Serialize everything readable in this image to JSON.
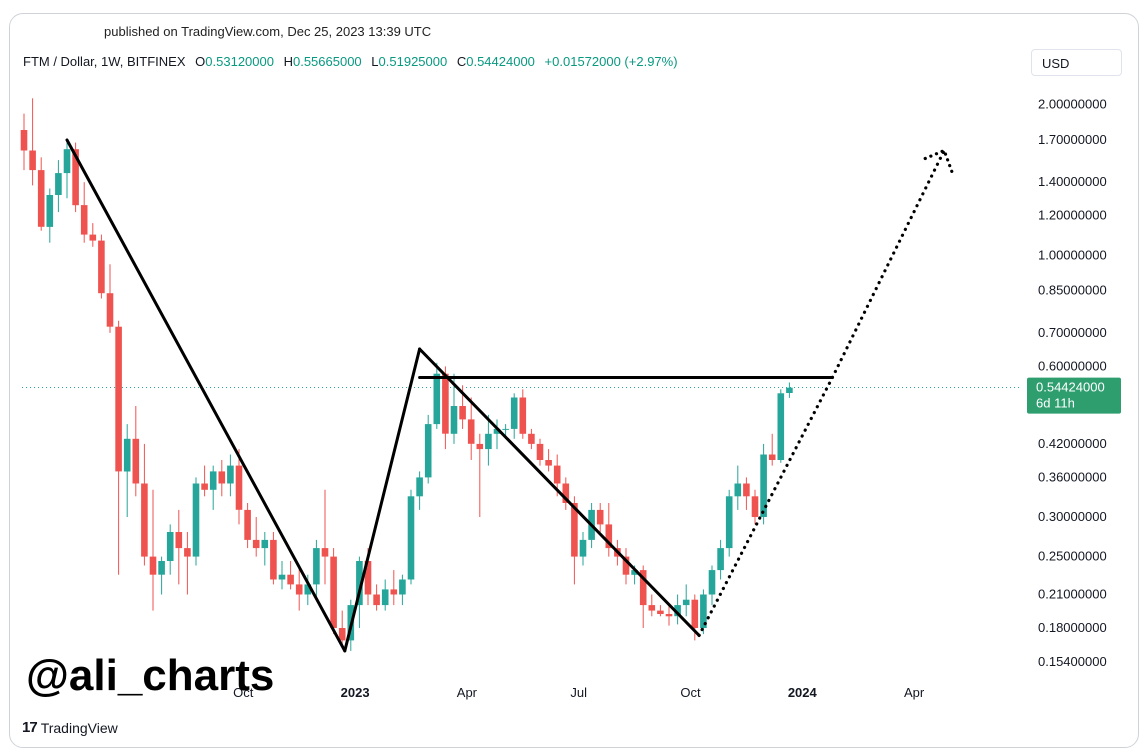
{
  "published": "published on TradingView.com, Dec 25, 2023 13:39 UTC",
  "header": {
    "symbol": "FTM / Dollar, 1W, BITFINEX",
    "o_label": "O",
    "o_value": "0.53120000",
    "h_label": "H",
    "h_value": "0.55665000",
    "l_label": "L",
    "l_value": "0.51925000",
    "c_label": "C",
    "c_value": "0.54424000",
    "change": "+0.01572000 (+2.97%)"
  },
  "currency": "USD",
  "watermark": "@ali_charts",
  "footer_logo": "TradingView",
  "colors": {
    "up": "#26a69a",
    "down": "#ef5350",
    "price_tag": "#2e9e6f",
    "lines": "#000000"
  },
  "chart_data": {
    "type": "candlestick",
    "interval": "1W",
    "scale": "log",
    "ylim": [
      0.145,
      2.2
    ],
    "y_ticks": [
      {
        "value": 2.0,
        "label": "2.00000000"
      },
      {
        "value": 1.7,
        "label": "1.70000000"
      },
      {
        "value": 1.4,
        "label": "1.40000000"
      },
      {
        "value": 1.2,
        "label": "1.20000000"
      },
      {
        "value": 1.0,
        "label": "1.00000000"
      },
      {
        "value": 0.85,
        "label": "0.85000000"
      },
      {
        "value": 0.7,
        "label": "0.70000000"
      },
      {
        "value": 0.6,
        "label": "0.60000000"
      },
      {
        "value": 0.42,
        "label": "0.42000000"
      },
      {
        "value": 0.36,
        "label": "0.36000000"
      },
      {
        "value": 0.3,
        "label": "0.30000000"
      },
      {
        "value": 0.25,
        "label": "0.25000000"
      },
      {
        "value": 0.21,
        "label": "0.21000000"
      },
      {
        "value": 0.18,
        "label": "0.18000000"
      },
      {
        "value": 0.154,
        "label": "0.15400000"
      }
    ],
    "x_ticks": [
      {
        "index": 25.5,
        "label": "Oct",
        "bold": false
      },
      {
        "index": 38.5,
        "label": "2023",
        "bold": true
      },
      {
        "index": 51.5,
        "label": "Apr",
        "bold": false
      },
      {
        "index": 64.5,
        "label": "Jul",
        "bold": false
      },
      {
        "index": 77.5,
        "label": "Oct",
        "bold": false
      },
      {
        "index": 90.5,
        "label": "2024",
        "bold": true
      },
      {
        "index": 103.5,
        "label": "Apr",
        "bold": false
      }
    ],
    "last_price": {
      "value": 0.54424,
      "label": "0.54424000",
      "countdown": "6d 11h"
    },
    "candles": [
      {
        "o": 1.78,
        "h": 1.92,
        "l": 1.48,
        "c": 1.62
      },
      {
        "o": 1.62,
        "h": 2.06,
        "l": 1.38,
        "c": 1.48
      },
      {
        "o": 1.48,
        "h": 1.57,
        "l": 1.12,
        "c": 1.14
      },
      {
        "o": 1.14,
        "h": 1.36,
        "l": 1.06,
        "c": 1.32
      },
      {
        "o": 1.32,
        "h": 1.55,
        "l": 1.22,
        "c": 1.46
      },
      {
        "o": 1.46,
        "h": 1.7,
        "l": 1.3,
        "c": 1.63
      },
      {
        "o": 1.63,
        "h": 1.68,
        "l": 1.22,
        "c": 1.26
      },
      {
        "o": 1.26,
        "h": 1.4,
        "l": 1.06,
        "c": 1.1
      },
      {
        "o": 1.1,
        "h": 1.16,
        "l": 1.04,
        "c": 1.07
      },
      {
        "o": 1.07,
        "h": 1.1,
        "l": 0.82,
        "c": 0.84
      },
      {
        "o": 0.84,
        "h": 0.96,
        "l": 0.7,
        "c": 0.72
      },
      {
        "o": 0.72,
        "h": 0.74,
        "l": 0.23,
        "c": 0.37
      },
      {
        "o": 0.37,
        "h": 0.46,
        "l": 0.3,
        "c": 0.43
      },
      {
        "o": 0.43,
        "h": 0.5,
        "l": 0.33,
        "c": 0.35
      },
      {
        "o": 0.35,
        "h": 0.42,
        "l": 0.24,
        "c": 0.25
      },
      {
        "o": 0.25,
        "h": 0.34,
        "l": 0.195,
        "c": 0.23
      },
      {
        "o": 0.23,
        "h": 0.25,
        "l": 0.21,
        "c": 0.245
      },
      {
        "o": 0.245,
        "h": 0.29,
        "l": 0.23,
        "c": 0.28
      },
      {
        "o": 0.28,
        "h": 0.31,
        "l": 0.22,
        "c": 0.26
      },
      {
        "o": 0.26,
        "h": 0.28,
        "l": 0.21,
        "c": 0.25
      },
      {
        "o": 0.25,
        "h": 0.36,
        "l": 0.24,
        "c": 0.35
      },
      {
        "o": 0.35,
        "h": 0.38,
        "l": 0.33,
        "c": 0.34
      },
      {
        "o": 0.34,
        "h": 0.38,
        "l": 0.31,
        "c": 0.37
      },
      {
        "o": 0.37,
        "h": 0.39,
        "l": 0.33,
        "c": 0.35
      },
      {
        "o": 0.35,
        "h": 0.4,
        "l": 0.33,
        "c": 0.38
      },
      {
        "o": 0.38,
        "h": 0.41,
        "l": 0.29,
        "c": 0.31
      },
      {
        "o": 0.31,
        "h": 0.32,
        "l": 0.26,
        "c": 0.27
      },
      {
        "o": 0.27,
        "h": 0.3,
        "l": 0.25,
        "c": 0.26
      },
      {
        "o": 0.26,
        "h": 0.28,
        "l": 0.24,
        "c": 0.27
      },
      {
        "o": 0.27,
        "h": 0.28,
        "l": 0.22,
        "c": 0.225
      },
      {
        "o": 0.225,
        "h": 0.245,
        "l": 0.215,
        "c": 0.23
      },
      {
        "o": 0.23,
        "h": 0.245,
        "l": 0.215,
        "c": 0.22
      },
      {
        "o": 0.22,
        "h": 0.24,
        "l": 0.195,
        "c": 0.21
      },
      {
        "o": 0.21,
        "h": 0.23,
        "l": 0.2,
        "c": 0.22
      },
      {
        "o": 0.22,
        "h": 0.27,
        "l": 0.205,
        "c": 0.26
      },
      {
        "o": 0.26,
        "h": 0.34,
        "l": 0.22,
        "c": 0.25
      },
      {
        "o": 0.25,
        "h": 0.26,
        "l": 0.175,
        "c": 0.18
      },
      {
        "o": 0.18,
        "h": 0.195,
        "l": 0.165,
        "c": 0.17
      },
      {
        "o": 0.17,
        "h": 0.205,
        "l": 0.162,
        "c": 0.2
      },
      {
        "o": 0.2,
        "h": 0.25,
        "l": 0.18,
        "c": 0.245
      },
      {
        "o": 0.245,
        "h": 0.26,
        "l": 0.2,
        "c": 0.21
      },
      {
        "o": 0.21,
        "h": 0.22,
        "l": 0.195,
        "c": 0.2
      },
      {
        "o": 0.2,
        "h": 0.225,
        "l": 0.195,
        "c": 0.215
      },
      {
        "o": 0.215,
        "h": 0.235,
        "l": 0.2,
        "c": 0.21
      },
      {
        "o": 0.21,
        "h": 0.23,
        "l": 0.2,
        "c": 0.225
      },
      {
        "o": 0.225,
        "h": 0.34,
        "l": 0.22,
        "c": 0.33
      },
      {
        "o": 0.33,
        "h": 0.37,
        "l": 0.31,
        "c": 0.36
      },
      {
        "o": 0.36,
        "h": 0.48,
        "l": 0.35,
        "c": 0.46
      },
      {
        "o": 0.46,
        "h": 0.61,
        "l": 0.45,
        "c": 0.58
      },
      {
        "o": 0.58,
        "h": 0.6,
        "l": 0.41,
        "c": 0.44
      },
      {
        "o": 0.44,
        "h": 0.58,
        "l": 0.42,
        "c": 0.5
      },
      {
        "o": 0.5,
        "h": 0.55,
        "l": 0.45,
        "c": 0.47
      },
      {
        "o": 0.47,
        "h": 0.52,
        "l": 0.39,
        "c": 0.42
      },
      {
        "o": 0.42,
        "h": 0.44,
        "l": 0.3,
        "c": 0.41
      },
      {
        "o": 0.41,
        "h": 0.48,
        "l": 0.38,
        "c": 0.44
      },
      {
        "o": 0.44,
        "h": 0.47,
        "l": 0.41,
        "c": 0.45
      },
      {
        "o": 0.45,
        "h": 0.46,
        "l": 0.43,
        "c": 0.45
      },
      {
        "o": 0.45,
        "h": 0.53,
        "l": 0.43,
        "c": 0.52
      },
      {
        "o": 0.52,
        "h": 0.54,
        "l": 0.43,
        "c": 0.44
      },
      {
        "o": 0.44,
        "h": 0.45,
        "l": 0.41,
        "c": 0.42
      },
      {
        "o": 0.42,
        "h": 0.43,
        "l": 0.38,
        "c": 0.39
      },
      {
        "o": 0.39,
        "h": 0.41,
        "l": 0.37,
        "c": 0.38
      },
      {
        "o": 0.38,
        "h": 0.4,
        "l": 0.33,
        "c": 0.35
      },
      {
        "o": 0.35,
        "h": 0.36,
        "l": 0.31,
        "c": 0.32
      },
      {
        "o": 0.32,
        "h": 0.33,
        "l": 0.22,
        "c": 0.25
      },
      {
        "o": 0.25,
        "h": 0.28,
        "l": 0.24,
        "c": 0.27
      },
      {
        "o": 0.27,
        "h": 0.32,
        "l": 0.26,
        "c": 0.31
      },
      {
        "o": 0.31,
        "h": 0.32,
        "l": 0.28,
        "c": 0.29
      },
      {
        "o": 0.29,
        "h": 0.32,
        "l": 0.25,
        "c": 0.26
      },
      {
        "o": 0.26,
        "h": 0.27,
        "l": 0.24,
        "c": 0.25
      },
      {
        "o": 0.25,
        "h": 0.26,
        "l": 0.22,
        "c": 0.23
      },
      {
        "o": 0.23,
        "h": 0.24,
        "l": 0.22,
        "c": 0.235
      },
      {
        "o": 0.235,
        "h": 0.24,
        "l": 0.18,
        "c": 0.2
      },
      {
        "o": 0.2,
        "h": 0.21,
        "l": 0.19,
        "c": 0.195
      },
      {
        "o": 0.195,
        "h": 0.2,
        "l": 0.19,
        "c": 0.192
      },
      {
        "o": 0.192,
        "h": 0.2,
        "l": 0.182,
        "c": 0.19
      },
      {
        "o": 0.19,
        "h": 0.21,
        "l": 0.183,
        "c": 0.2
      },
      {
        "o": 0.2,
        "h": 0.22,
        "l": 0.19,
        "c": 0.205
      },
      {
        "o": 0.205,
        "h": 0.21,
        "l": 0.17,
        "c": 0.18
      },
      {
        "o": 0.18,
        "h": 0.215,
        "l": 0.175,
        "c": 0.21
      },
      {
        "o": 0.21,
        "h": 0.24,
        "l": 0.2,
        "c": 0.235
      },
      {
        "o": 0.235,
        "h": 0.27,
        "l": 0.225,
        "c": 0.26
      },
      {
        "o": 0.26,
        "h": 0.34,
        "l": 0.25,
        "c": 0.33
      },
      {
        "o": 0.33,
        "h": 0.38,
        "l": 0.31,
        "c": 0.35
      },
      {
        "o": 0.35,
        "h": 0.36,
        "l": 0.31,
        "c": 0.33
      },
      {
        "o": 0.33,
        "h": 0.34,
        "l": 0.29,
        "c": 0.3
      },
      {
        "o": 0.3,
        "h": 0.42,
        "l": 0.29,
        "c": 0.4
      },
      {
        "o": 0.4,
        "h": 0.44,
        "l": 0.38,
        "c": 0.39
      },
      {
        "o": 0.39,
        "h": 0.54,
        "l": 0.385,
        "c": 0.53
      },
      {
        "o": 0.531,
        "h": 0.557,
        "l": 0.519,
        "c": 0.544
      }
    ],
    "drawings": [
      {
        "type": "line",
        "points": [
          [
            5,
            1.7
          ],
          [
            37.3,
            0.162
          ]
        ]
      },
      {
        "type": "line",
        "points": [
          [
            37.3,
            0.162
          ],
          [
            46,
            0.65
          ]
        ]
      },
      {
        "type": "line",
        "points": [
          [
            46,
            0.65
          ],
          [
            78.5,
            0.174
          ]
        ]
      },
      {
        "type": "line",
        "points": [
          [
            46,
            0.57
          ],
          [
            94,
            0.57
          ]
        ]
      },
      {
        "type": "dotted",
        "points": [
          [
            78.5,
            0.174
          ],
          [
            94,
            0.57
          ],
          [
            107,
            1.62
          ]
        ]
      }
    ]
  }
}
